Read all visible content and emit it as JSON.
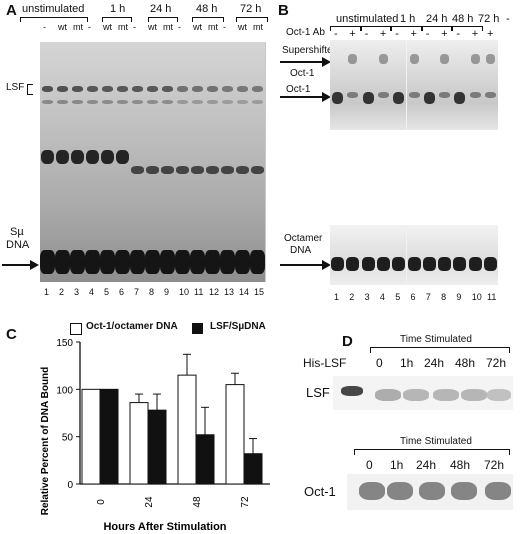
{
  "panelA": {
    "letter": "A",
    "header_groups": [
      {
        "label": "unstimulated",
        "lanes": [
          "-",
          "wt",
          "mt"
        ]
      },
      {
        "label": "1 h",
        "lanes": [
          "-",
          "wt",
          "mt"
        ]
      },
      {
        "label": "24 h",
        "lanes": [
          "-",
          "wt",
          "mt"
        ]
      },
      {
        "label": "48 h",
        "lanes": [
          "-",
          "wt",
          "mt"
        ]
      },
      {
        "label": "72 h",
        "lanes": [
          "-",
          "wt",
          "mt"
        ]
      }
    ],
    "lsf_label": "LSF",
    "probe_label_line1": "Sµ",
    "probe_label_line2": "DNA",
    "lane_numbers": [
      "1",
      "2",
      "3",
      "4",
      "5",
      "6",
      "7",
      "8",
      "9",
      "10",
      "11",
      "12",
      "13",
      "14",
      "15"
    ]
  },
  "panelB": {
    "letter": "B",
    "header_groups": [
      {
        "label": "unstimulated",
        "lanes": [
          "-",
          "+"
        ]
      },
      {
        "label": "1 h",
        "lanes": [
          "-",
          "+"
        ]
      },
      {
        "label": "24 h",
        "lanes": [
          "-",
          "+"
        ]
      },
      {
        "label": "48 h",
        "lanes": [
          "-",
          "+"
        ]
      },
      {
        "label": "72 h",
        "lanes": [
          "-",
          "+"
        ]
      },
      {
        "label": "-",
        "lanes": [
          "+"
        ]
      }
    ],
    "antibody_label": "Oct-1 Ab",
    "supershift_line1": "Supershifted",
    "supershift_line2": "Oct-1",
    "oct1_label": "Oct-1",
    "octamer_line1": "Octamer",
    "octamer_line2": "DNA",
    "lane_numbers": [
      "1",
      "2",
      "3",
      "4",
      "5",
      "6",
      "7",
      "8",
      "9",
      "10",
      "11"
    ]
  },
  "panelC": {
    "letter": "C",
    "legend": [
      "Oct-1/octamer DNA",
      "LSF/SµDNA"
    ]
  },
  "chart_data": {
    "type": "bar",
    "categories": [
      "0",
      "24",
      "48",
      "72"
    ],
    "series": [
      {
        "name": "Oct-1/octamer DNA",
        "values": [
          100,
          86,
          115,
          105
        ],
        "errors": [
          0,
          9,
          22,
          12
        ],
        "color": "#ffffff"
      },
      {
        "name": "LSF/SµDNA",
        "values": [
          100,
          78,
          52,
          32
        ],
        "errors": [
          0,
          17,
          29,
          16
        ],
        "color": "#111111"
      }
    ],
    "xlabel": "Hours After Stimulation",
    "ylabel": "Relative Percent of DNA Bound",
    "ylim": [
      0,
      150
    ],
    "yticks": [
      0,
      50,
      100,
      150
    ],
    "legend_position": "top"
  },
  "panelD": {
    "letter": "D",
    "top_header": "Time Stimulated",
    "top_columns": [
      "His-LSF",
      "0",
      "1h",
      "24h",
      "48h",
      "72h"
    ],
    "top_row_label": "LSF",
    "bottom_header": "Time Stimulated",
    "bottom_columns": [
      "0",
      "1h",
      "24h",
      "48h",
      "72h"
    ],
    "bottom_row_label": "Oct-1"
  }
}
